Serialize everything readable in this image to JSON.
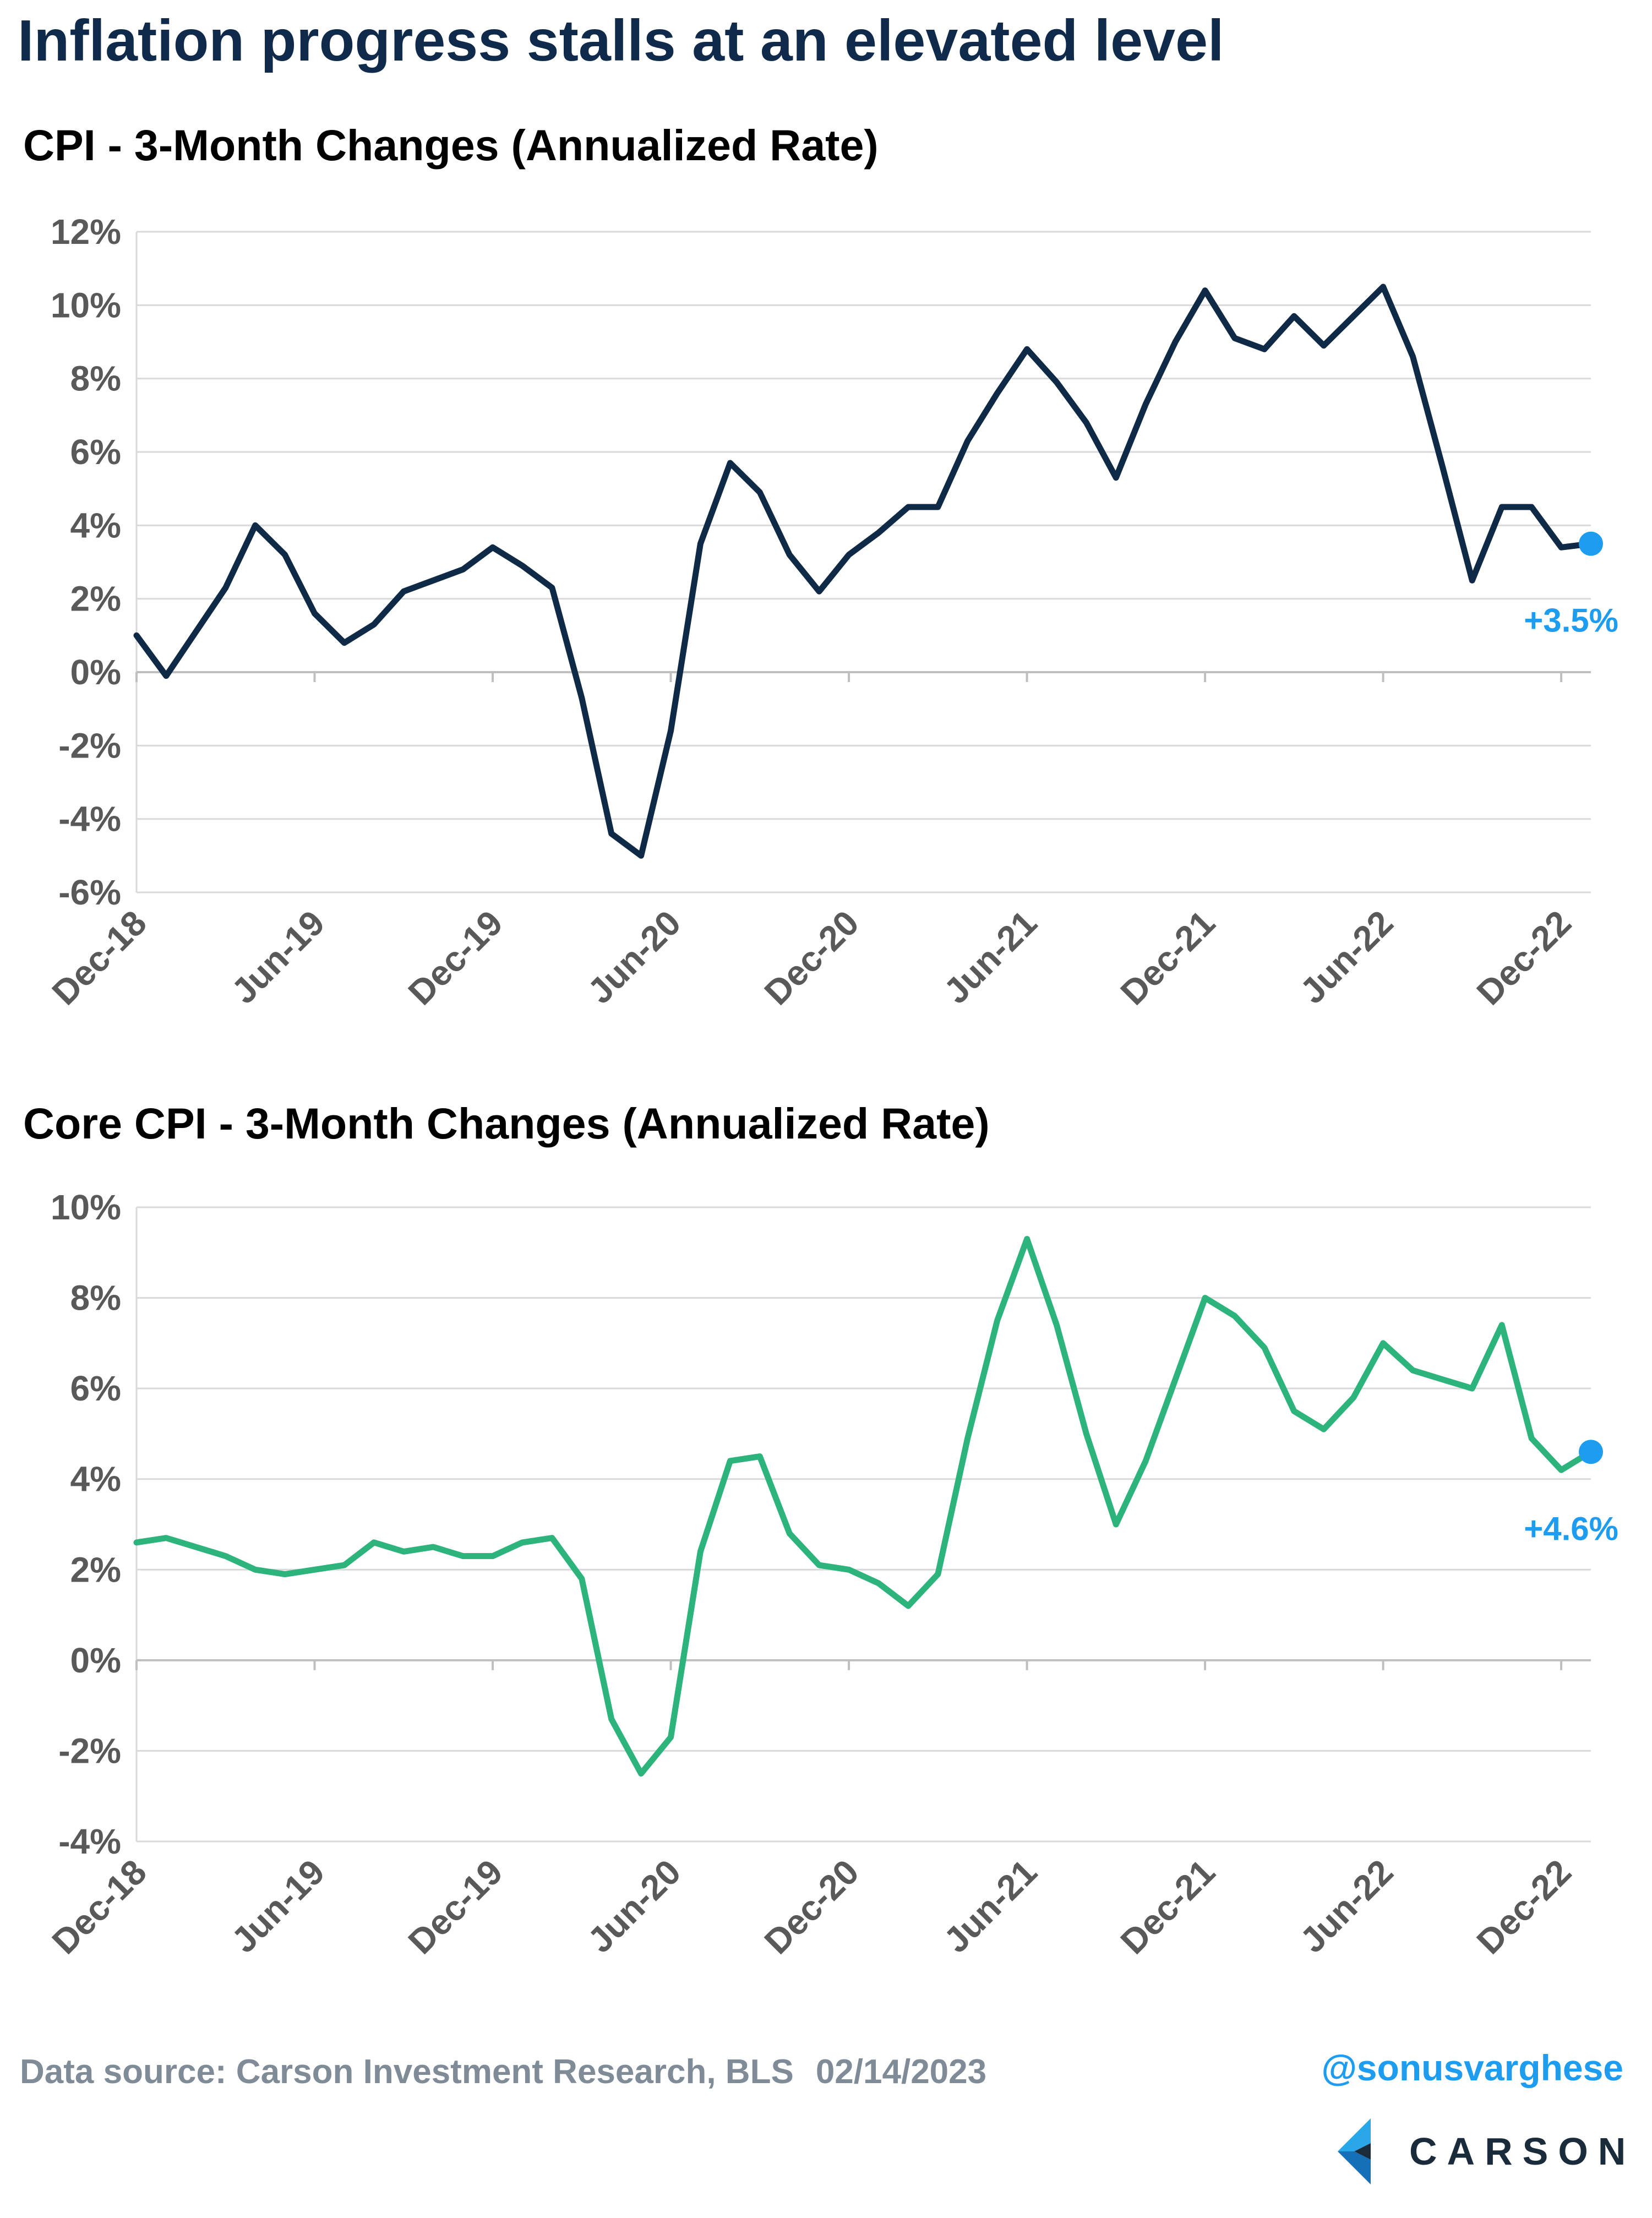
{
  "title": "Inflation progress stalls at an elevated level",
  "footer": {
    "source": "Data source: Carson Investment Research, BLS",
    "date": "02/14/2023",
    "handle": "@sonusvarghese",
    "logo_text": "CARSON"
  },
  "colors": {
    "title": "#0f2a4a",
    "cpi_line": "#0e2a47",
    "core_line": "#2db37c",
    "end_marker": "#1e9cf0",
    "grid": "#d9d9d9",
    "tick_label": "#595959"
  },
  "chart_data": [
    {
      "type": "line",
      "title": "CPI - 3-Month Changes (Annualized Rate)",
      "x_tick_labels": [
        "Dec-18",
        "Jun-19",
        "Dec-19",
        "Jun-20",
        "Dec-20",
        "Jun-21",
        "Dec-21",
        "Jun-22",
        "Dec-22"
      ],
      "x_start": "Dec-18",
      "x_end": "Jan-23",
      "ylim": [
        -6,
        12
      ],
      "ytick_step": 2,
      "y_unit": "%",
      "grid": "horizontal",
      "series": [
        {
          "values": [
            1.0,
            -0.1,
            1.1,
            2.3,
            4.0,
            3.2,
            1.6,
            0.8,
            1.3,
            2.2,
            2.5,
            2.8,
            3.4,
            2.9,
            2.3,
            -0.7,
            -4.4,
            -5.0,
            -1.6,
            3.5,
            5.7,
            4.9,
            3.2,
            2.2,
            3.2,
            3.8,
            4.5,
            4.5,
            6.3,
            7.6,
            8.8,
            7.9,
            6.8,
            5.3,
            7.3,
            9.0,
            10.4,
            9.1,
            8.8,
            9.7,
            8.9,
            9.7,
            10.5,
            8.6,
            5.6,
            2.5,
            4.5,
            4.5,
            3.4,
            3.5
          ]
        }
      ],
      "end_label": "+3.5%"
    },
    {
      "type": "line",
      "title": "Core CPI - 3-Month Changes (Annualized Rate)",
      "x_tick_labels": [
        "Dec-18",
        "Jun-19",
        "Dec-19",
        "Jun-20",
        "Dec-20",
        "Jun-21",
        "Dec-21",
        "Jun-22",
        "Dec-22"
      ],
      "x_start": "Dec-18",
      "x_end": "Jan-23",
      "ylim": [
        -4,
        10
      ],
      "ytick_step": 2,
      "y_unit": "%",
      "grid": "horizontal",
      "series": [
        {
          "values": [
            2.6,
            2.7,
            2.5,
            2.3,
            2.0,
            1.9,
            2.0,
            2.1,
            2.6,
            2.4,
            2.5,
            2.3,
            2.3,
            2.6,
            2.7,
            1.8,
            -1.3,
            -2.5,
            -1.7,
            2.4,
            4.4,
            4.5,
            2.8,
            2.1,
            2.0,
            1.7,
            1.2,
            1.9,
            4.9,
            7.5,
            9.3,
            7.4,
            5.0,
            3.0,
            4.4,
            6.2,
            8.0,
            7.6,
            6.9,
            5.5,
            5.1,
            5.8,
            7.0,
            6.4,
            6.2,
            6.0,
            7.4,
            4.9,
            4.2,
            4.6
          ]
        }
      ],
      "end_label": "+4.6%"
    }
  ]
}
